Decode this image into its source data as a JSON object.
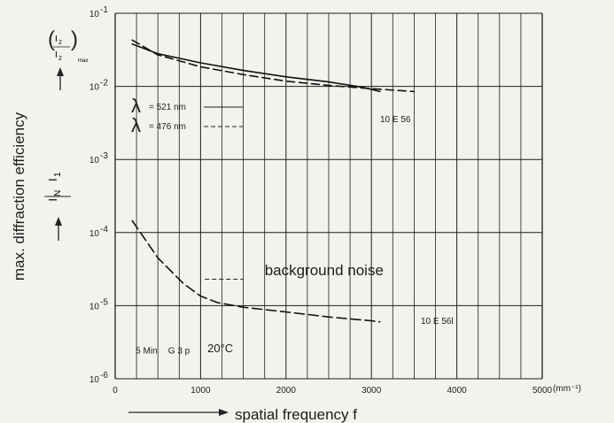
{
  "chart_data": {
    "type": "line",
    "xlabel": "spatial frequency f",
    "x_unit": "(mm⁻¹)",
    "ylabel": "max. diffraction efficiency",
    "xlim": [
      0,
      5000
    ],
    "ylim": [
      1e-06,
      0.1
    ],
    "y_scale": "log",
    "grid": true,
    "x_ticks": [
      "0",
      "1000",
      "2000",
      "3000",
      "4000",
      "5000"
    ],
    "y_ticks": [
      {
        "value": 0.1,
        "base": "10",
        "exp": "-1"
      },
      {
        "value": 0.01,
        "base": "10",
        "exp": "-2"
      },
      {
        "value": 0.001,
        "base": "10",
        "exp": "-3"
      },
      {
        "value": 0.0001,
        "base": "10",
        "exp": "-4"
      },
      {
        "value": 1e-05,
        "base": "10",
        "exp": "-5"
      },
      {
        "value": 1e-06,
        "base": "10",
        "exp": "-6"
      }
    ],
    "ratio_top": {
      "numerator": "I",
      "num_sub": "2",
      "denominator": "I",
      "den_sub": "2",
      "suffix": "max"
    },
    "ratio_bottom": {
      "numerator": "I",
      "num_sub": "N",
      "denominator": "I",
      "den_sub": "1"
    },
    "legend": [
      {
        "symbol": "λ",
        "text": "= 521 nm",
        "style": "solid"
      },
      {
        "symbol": "λ",
        "text": "= 476 nm",
        "style": "dashed"
      }
    ],
    "series": [
      {
        "group": "10 E 56",
        "style": "solid",
        "x": [
          200,
          500,
          1000,
          1500,
          2000,
          2500,
          2900,
          3100
        ],
        "y": [
          0.038,
          0.028,
          0.021,
          0.0165,
          0.0135,
          0.0115,
          0.0097,
          0.0085
        ]
      },
      {
        "group": "10 E 56",
        "style": "dashed",
        "x": [
          200,
          500,
          1000,
          1500,
          2000,
          2500,
          3000,
          3500
        ],
        "y": [
          0.043,
          0.027,
          0.0185,
          0.0145,
          0.0118,
          0.0103,
          0.0093,
          0.0085
        ]
      },
      {
        "group": "10 E 56",
        "style": "dashed",
        "x": [
          200,
          500,
          800,
          1000,
          1200,
          1500,
          2000,
          2500,
          3000,
          3100
        ],
        "y": [
          0.000145,
          4.5e-05,
          2e-05,
          1.35e-05,
          1.1e-05,
          9.5e-06,
          8.2e-06,
          7e-06,
          6.2e-06,
          6e-06
        ]
      }
    ],
    "annotations": [
      {
        "text": "10 E 56",
        "x": 3000,
        "y": 0.0085
      },
      {
        "text": "10 E 56l",
        "x": 3500,
        "y": 6.2e-06
      },
      {
        "text": "background noise",
        "x": 1750,
        "y": 2.6e-05
      },
      {
        "text": "5 Min",
        "x": 240,
        "y": 2.2e-06
      },
      {
        "text": "G 3 p",
        "x": 620,
        "y": 2.2e-06
      },
      {
        "text": "20°C",
        "x": 1080,
        "y": 2.3e-06
      }
    ],
    "background_noise_ref": {
      "x": [
        1050,
        1500
      ],
      "y": 2.3e-05
    }
  }
}
